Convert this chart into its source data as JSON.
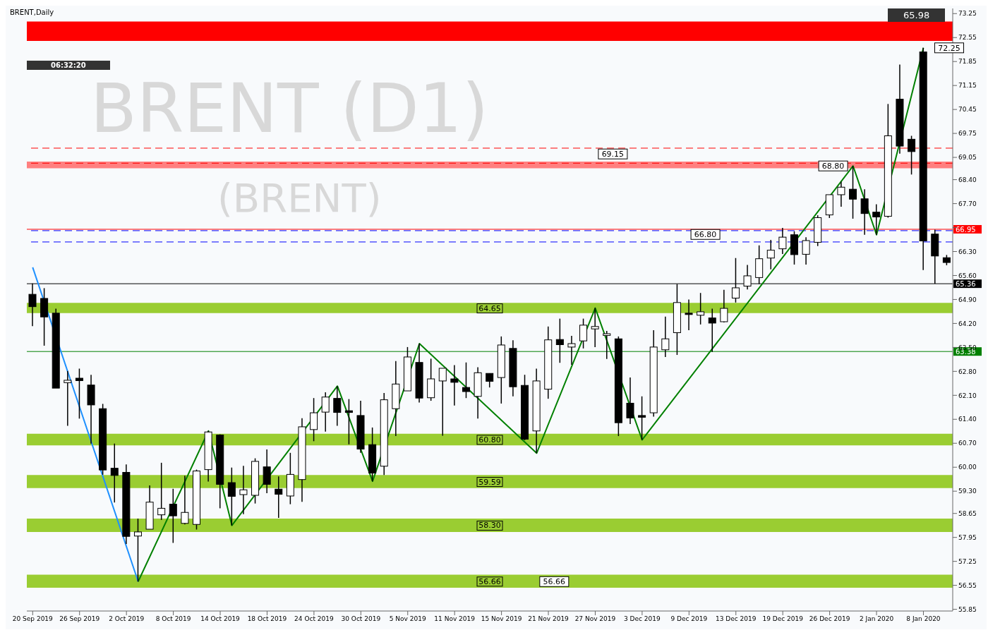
{
  "chart_data": {
    "type": "candlestick",
    "title": "BRENT,Daily",
    "categories": [
      "20 Sep 2019",
      null,
      null,
      null,
      "26 Sep 2019",
      null,
      null,
      null,
      "2 Oct 2019",
      null,
      null,
      null,
      "8 Oct 2019",
      null,
      null,
      null,
      "14 Oct 2019",
      null,
      null,
      null,
      "18 Oct 2019",
      null,
      null,
      null,
      "24 Oct 2019",
      null,
      null,
      null,
      "30 Oct 2019",
      null,
      null,
      null,
      "5 Nov 2019",
      null,
      null,
      null,
      "11 Nov 2019",
      null,
      null,
      null,
      "15 Nov 2019",
      null,
      null,
      null,
      "21 Nov 2019",
      null,
      null,
      null,
      "27 Nov 2019",
      null,
      null,
      null,
      "3 Dec 2019",
      null,
      null,
      null,
      "9 Dec 2019",
      null,
      null,
      null,
      "13 Dec 2019",
      null,
      null,
      null,
      "19 Dec 2019",
      null,
      null,
      null,
      "26 Dec 2019",
      null,
      null,
      null,
      "2 Jan 2020",
      null,
      null,
      null,
      "8 Jan 2020",
      null,
      null
    ],
    "ohlc": [
      [
        65.05,
        65.37,
        64.12,
        64.69
      ],
      [
        64.93,
        65.23,
        63.55,
        64.39
      ],
      [
        64.5,
        64.63,
        62.31,
        62.31
      ],
      [
        62.47,
        62.81,
        61.21,
        62.54
      ],
      [
        62.6,
        62.88,
        61.42,
        62.53
      ],
      [
        62.4,
        62.7,
        60.69,
        61.82
      ],
      [
        61.71,
        61.85,
        59.78,
        59.92
      ],
      [
        59.97,
        60.69,
        58.97,
        59.76
      ],
      [
        59.85,
        60.08,
        57.76,
        57.98
      ],
      [
        57.99,
        58.5,
        56.66,
        58.11
      ],
      [
        58.19,
        59.47,
        58.19,
        58.98
      ],
      [
        58.61,
        60.13,
        58.46,
        58.8
      ],
      [
        58.92,
        59.37,
        57.79,
        58.58
      ],
      [
        58.36,
        59.75,
        58.33,
        58.68
      ],
      [
        58.33,
        59.93,
        58.18,
        59.89
      ],
      [
        59.93,
        61.06,
        59.58,
        61.03
      ],
      [
        60.94,
        60.96,
        58.8,
        59.5
      ],
      [
        59.55,
        59.99,
        58.3,
        59.15
      ],
      [
        59.2,
        60.04,
        58.63,
        59.34
      ],
      [
        59.18,
        60.26,
        58.94,
        60.17
      ],
      [
        60.01,
        60.52,
        59.24,
        59.5
      ],
      [
        59.36,
        59.73,
        58.52,
        59.21
      ],
      [
        59.16,
        60.42,
        58.92,
        59.79
      ],
      [
        59.64,
        61.43,
        58.99,
        61.18
      ],
      [
        61.1,
        62.02,
        60.76,
        61.59
      ],
      [
        61.61,
        62.19,
        61.04,
        62.05
      ],
      [
        62.01,
        62.37,
        61.21,
        61.6
      ],
      [
        61.65,
        61.99,
        60.67,
        61.6
      ],
      [
        61.51,
        61.94,
        60.42,
        60.53
      ],
      [
        60.66,
        61.16,
        59.59,
        59.83
      ],
      [
        60.03,
        62.17,
        59.77,
        61.97
      ],
      [
        61.71,
        63.1,
        60.91,
        62.43
      ],
      [
        62.23,
        63.51,
        62.23,
        63.22
      ],
      [
        63.06,
        63.61,
        61.89,
        62.02
      ],
      [
        62.03,
        63.17,
        61.94,
        62.58
      ],
      [
        62.52,
        62.89,
        60.92,
        62.89
      ],
      [
        62.58,
        62.98,
        61.8,
        62.48
      ],
      [
        62.33,
        63.06,
        62.02,
        62.21
      ],
      [
        62.07,
        62.92,
        61.42,
        62.76
      ],
      [
        62.74,
        62.74,
        62.33,
        62.51
      ],
      [
        62.62,
        63.82,
        61.86,
        63.57
      ],
      [
        63.47,
        63.71,
        62.07,
        62.35
      ],
      [
        62.39,
        62.7,
        60.79,
        60.82
      ],
      [
        61.06,
        62.88,
        60.41,
        62.52
      ],
      [
        62.28,
        64.11,
        62.0,
        63.72
      ],
      [
        63.73,
        64.34,
        63.05,
        63.58
      ],
      [
        63.51,
        63.84,
        62.99,
        63.61
      ],
      [
        63.69,
        64.34,
        63.47,
        64.15
      ],
      [
        64.04,
        64.65,
        63.51,
        64.11
      ],
      [
        63.85,
        63.98,
        63.16,
        63.9
      ],
      [
        63.75,
        63.82,
        60.91,
        61.3
      ],
      [
        61.87,
        62.62,
        61.26,
        61.44
      ],
      [
        61.51,
        62.07,
        60.8,
        61.46
      ],
      [
        61.59,
        64.0,
        61.48,
        63.51
      ],
      [
        63.43,
        64.4,
        63.22,
        63.75
      ],
      [
        63.93,
        65.35,
        63.28,
        64.81
      ],
      [
        64.5,
        64.9,
        64.0,
        64.46
      ],
      [
        64.44,
        65.09,
        64.17,
        64.54
      ],
      [
        64.36,
        64.63,
        63.37,
        64.21
      ],
      [
        64.25,
        65.18,
        64.23,
        64.64
      ],
      [
        64.94,
        66.11,
        64.81,
        65.24
      ],
      [
        65.29,
        65.91,
        65.19,
        65.59
      ],
      [
        65.54,
        66.48,
        65.35,
        66.09
      ],
      [
        66.11,
        66.64,
        65.78,
        66.34
      ],
      [
        66.38,
        66.99,
        66.23,
        66.72
      ],
      [
        66.79,
        66.89,
        65.92,
        66.21
      ],
      [
        66.22,
        66.72,
        65.92,
        66.62
      ],
      [
        66.57,
        67.36,
        66.46,
        67.29
      ],
      [
        67.37,
        67.96,
        67.28,
        67.96
      ],
      [
        67.96,
        68.34,
        67.61,
        68.18
      ],
      [
        68.12,
        68.8,
        67.26,
        67.83
      ],
      [
        67.84,
        68.12,
        66.79,
        67.41
      ],
      [
        67.45,
        67.68,
        66.79,
        67.31
      ],
      [
        67.33,
        70.61,
        67.29,
        69.68
      ],
      [
        70.75,
        71.76,
        69.16,
        69.38
      ],
      [
        69.58,
        69.68,
        68.55,
        69.22
      ],
      [
        72.13,
        72.25,
        65.76,
        66.61
      ],
      [
        66.81,
        66.94,
        65.36,
        66.17
      ],
      [
        66.12,
        66.2,
        65.9,
        65.98
      ]
    ],
    "series": [
      {
        "type": "line",
        "color": "#1e90ff",
        "values": [
          65.84,
          null,
          null,
          null,
          null,
          null,
          null,
          null,
          null,
          56.66,
          null,
          null,
          null,
          null,
          null,
          null,
          null,
          null,
          null,
          null,
          null,
          null,
          null,
          null,
          null,
          null,
          null,
          null,
          null,
          null,
          null,
          null,
          null,
          null,
          null,
          null,
          null,
          null,
          null,
          null,
          null,
          null,
          null,
          null,
          null,
          null,
          null,
          null,
          null,
          null,
          null,
          null,
          null,
          null,
          null,
          null,
          null,
          null,
          null,
          null,
          null,
          null,
          null,
          null,
          null,
          null,
          null,
          null,
          null,
          null,
          null,
          null,
          null,
          null,
          null,
          null,
          null,
          null,
          null
        ]
      },
      {
        "type": "line",
        "color": "#008000",
        "values": [
          null,
          null,
          null,
          null,
          null,
          null,
          null,
          null,
          null,
          56.66,
          null,
          null,
          null,
          null,
          null,
          61.06,
          null,
          58.3,
          null,
          null,
          null,
          null,
          null,
          null,
          null,
          null,
          62.37,
          null,
          null,
          59.59,
          null,
          null,
          null,
          63.61,
          null,
          null,
          null,
          null,
          null,
          null,
          null,
          null,
          null,
          60.41,
          null,
          null,
          null,
          null,
          64.65,
          null,
          null,
          null,
          60.8,
          null,
          null,
          null,
          null,
          null,
          null,
          null,
          null,
          null,
          null,
          null,
          null,
          null,
          null,
          null,
          null,
          null,
          68.8,
          null,
          66.79,
          null,
          null,
          null,
          72.25,
          null,
          null
        ]
      }
    ],
    "ylim": [
      55.8,
      73.4
    ],
    "yticks": [
      {
        "value": 73.25,
        "label": "73.25"
      },
      {
        "value": 72.55,
        "label": "72.55"
      },
      {
        "value": 71.85,
        "label": "71.85"
      },
      {
        "value": 71.15,
        "label": "71.15"
      },
      {
        "value": 70.45,
        "label": "70.45"
      },
      {
        "value": 69.75,
        "label": "69.75"
      },
      {
        "value": 69.05,
        "label": "69.05"
      },
      {
        "value": 68.4,
        "label": "68.40"
      },
      {
        "value": 67.7,
        "label": "67.70"
      },
      {
        "value": 67.0,
        "label": null
      },
      {
        "value": 66.3,
        "label": "66.30"
      },
      {
        "value": 65.6,
        "label": "65.60"
      },
      {
        "value": 64.9,
        "label": "64.90"
      },
      {
        "value": 64.2,
        "label": "64.20"
      },
      {
        "value": 63.5,
        "label": "63.50"
      },
      {
        "value": 62.8,
        "label": "62.80"
      },
      {
        "value": 62.1,
        "label": "62.10"
      },
      {
        "value": 61.4,
        "label": "61.40"
      },
      {
        "value": 60.7,
        "label": "60.70"
      },
      {
        "value": 60.0,
        "label": "60.00"
      },
      {
        "value": 59.3,
        "label": "59.30"
      },
      {
        "value": 58.65,
        "label": "58.65"
      },
      {
        "value": 57.95,
        "label": "57.95"
      },
      {
        "value": 57.25,
        "label": "57.25"
      },
      {
        "value": 56.55,
        "label": "56.55"
      },
      {
        "value": 55.85,
        "label": "55.85"
      }
    ],
    "ref_lines": [
      {
        "axis": "y",
        "value": 69.32,
        "color": "#ff0000",
        "line_style": "dashed"
      },
      {
        "axis": "y",
        "value": 68.88,
        "color": "#ff0000",
        "line_style": "dashed"
      },
      {
        "axis": "y",
        "value": 66.95,
        "label": "66.95",
        "color": "#ff0000",
        "line_style": "solid"
      },
      {
        "axis": "y",
        "value": 66.91,
        "color": "#0000ff",
        "line_style": "dashed"
      },
      {
        "axis": "y",
        "value": 66.58,
        "color": "#0000ff",
        "line_style": "dashed"
      },
      {
        "axis": "y",
        "value": 65.36,
        "label": "65.36",
        "color": "#000000",
        "line_style": "solid"
      },
      {
        "axis": "y",
        "value": 63.38,
        "label": "63.38",
        "color": "#008000",
        "line_style": "solid"
      }
    ],
    "bands": [
      {
        "axis": "y",
        "from": 72.45,
        "to": 73.02,
        "color": "#ff0000"
      },
      {
        "axis": "y",
        "from": 68.73,
        "to": 68.93,
        "color": "#ff8080"
      },
      {
        "axis": "y",
        "from": 64.5,
        "to": 64.8,
        "label": "64.65",
        "color": "#9acd32"
      },
      {
        "axis": "y",
        "from": 60.64,
        "to": 60.98,
        "label": "60.80",
        "color": "#9acd32"
      },
      {
        "axis": "y",
        "from": 59.39,
        "to": 59.77,
        "label": "59.59",
        "color": "#9acd32"
      },
      {
        "axis": "y",
        "from": 58.11,
        "to": 58.5,
        "label": "58.30",
        "color": "#9acd32"
      },
      {
        "axis": "y",
        "from": 56.48,
        "to": 56.86,
        "label": "56.66",
        "color": "#9acd32"
      }
    ],
    "annotations": [
      "06:32:20",
      "65.98",
      "BRENT (D1)",
      "(BRENT)",
      {
        "text": "69.15",
        "y": 69.15
      },
      {
        "text": "68.80",
        "y": 68.8
      },
      {
        "text": "66.80",
        "y": 66.8
      },
      {
        "text": "72.25",
        "y": 72.25
      },
      {
        "text": "56.66",
        "y": 56.66
      }
    ],
    "grid": false,
    "legend": false
  }
}
